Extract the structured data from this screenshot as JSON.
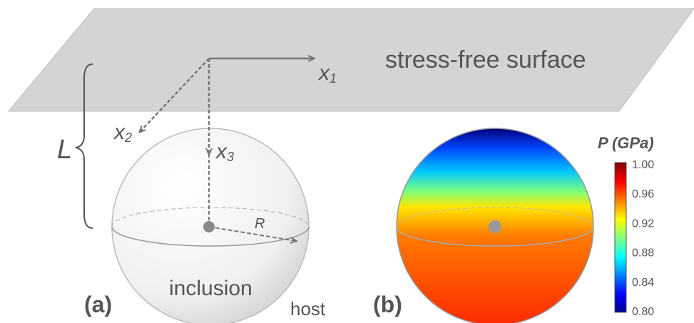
{
  "surface_label": "stress-free surface",
  "axes": [
    {
      "label": "x",
      "sub": "1"
    },
    {
      "label": "x",
      "sub": "2"
    },
    {
      "label": "x",
      "sub": "3"
    }
  ],
  "depth_label": "L",
  "radius_label": "R",
  "inclusion_label": "inclusion",
  "host_label": "host",
  "panel_a": "(a)",
  "panel_b": "(b)",
  "colorbar": {
    "title": "P (GPa)",
    "ticks": [
      "1.00",
      "0.96",
      "0.92",
      "0.88",
      "0.84",
      "0.80"
    ]
  }
}
